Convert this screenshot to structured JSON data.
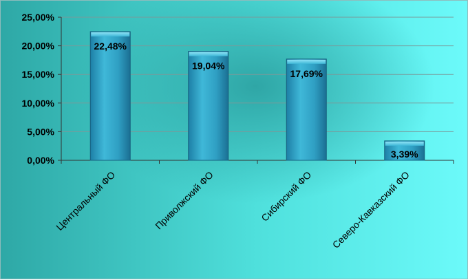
{
  "chart_data": {
    "type": "bar",
    "categories": [
      "Центральный ФО",
      "Приволжский ФО",
      "Сибирский ФО",
      "Северо-Кавказский ФО"
    ],
    "values": [
      22.48,
      19.04,
      17.69,
      3.39
    ],
    "data_labels": [
      "22,48%",
      "19,04%",
      "17,69%",
      "3,39%"
    ],
    "y_tick_labels": [
      "0,00%",
      "5,00%",
      "10,00%",
      "15,00%",
      "20,00%",
      "25,00%"
    ],
    "y_ticks": [
      0,
      5,
      10,
      15,
      20,
      25
    ],
    "ylim": [
      0,
      25
    ],
    "grid": true,
    "legend": "none",
    "bar_color": "#2fa0c4",
    "title": "",
    "xlabel": "",
    "ylabel": ""
  }
}
